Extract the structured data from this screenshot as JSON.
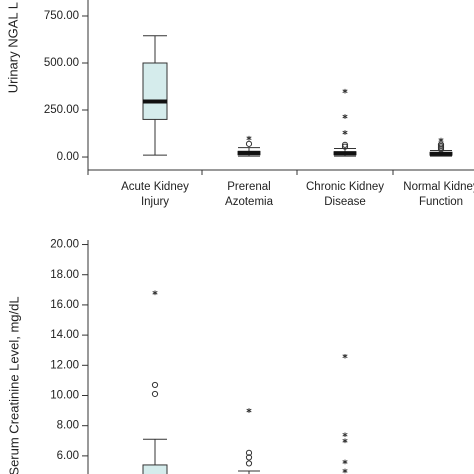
{
  "chart_data": [
    {
      "type": "box",
      "y_label": "Urinary NGAL L",
      "categories": [
        "Acute Kidney Injury",
        "Prerenal Azotemia",
        "Chronic Kidney Disease",
        "Normal Kidney Function"
      ],
      "color": "#d5ecec",
      "ylim": [
        -69,
        835
      ],
      "yticks": [
        {
          "value": 0,
          "label": "0.00"
        },
        {
          "value": 250,
          "label": "250.00"
        },
        {
          "value": 500,
          "label": "500.00"
        },
        {
          "value": 750,
          "label": "750.00"
        }
      ],
      "boxes": [
        {
          "whisker_low": 10,
          "q1": 200,
          "median": 295,
          "q3": 500,
          "whisker_high": 645,
          "outliers": [],
          "extremes": []
        },
        {
          "whisker_low": 5,
          "q1": 12,
          "median": 22,
          "q3": 30,
          "whisker_high": 50,
          "outliers": [
            70
          ],
          "extremes": [
            100
          ]
        },
        {
          "whisker_low": 5,
          "q1": 12,
          "median": 20,
          "q3": 28,
          "whisker_high": 45,
          "outliers": [
            55,
            65
          ],
          "extremes": [
            130,
            215,
            350
          ]
        },
        {
          "whisker_low": 5,
          "q1": 10,
          "median": 17,
          "q3": 25,
          "whisker_high": 35,
          "outliers": [
            42,
            50,
            58,
            66
          ],
          "extremes": [
            90
          ]
        }
      ]
    },
    {
      "type": "box",
      "y_label": "Serum Creatinine Level, mg/dL",
      "color": "#d5ecec",
      "ylim": [
        4.8,
        20.3
      ],
      "yticks": [
        {
          "value": 6,
          "label": "6.00"
        },
        {
          "value": 8,
          "label": "8.00"
        },
        {
          "value": 10,
          "label": "10.00"
        },
        {
          "value": 12,
          "label": "12.00"
        },
        {
          "value": 14,
          "label": "14.00"
        },
        {
          "value": 16,
          "label": "16.00"
        },
        {
          "value": 18,
          "label": "18.00"
        },
        {
          "value": 20,
          "label": "20.00"
        }
      ],
      "boxes": [
        {
          "whisker_low": null,
          "q1": null,
          "median": null,
          "q3": 5.4,
          "whisker_high": 7.1,
          "outliers": [
            10.1,
            10.7
          ],
          "extremes": [
            16.8
          ]
        },
        {
          "whisker_low": null,
          "q1": null,
          "median": null,
          "q3": null,
          "whisker_high": 5.0,
          "outliers": [
            5.5,
            5.9,
            6.2
          ],
          "extremes": [
            9.0
          ]
        },
        {
          "whisker_low": null,
          "q1": null,
          "median": null,
          "q3": null,
          "whisker_high": null,
          "outliers": [],
          "extremes": [
            5.0,
            5.6,
            7.0,
            7.4,
            12.6
          ]
        },
        {
          "whisker_low": null,
          "q1": null,
          "median": null,
          "q3": null,
          "whisker_high": null,
          "outliers": [],
          "extremes": []
        }
      ]
    }
  ]
}
